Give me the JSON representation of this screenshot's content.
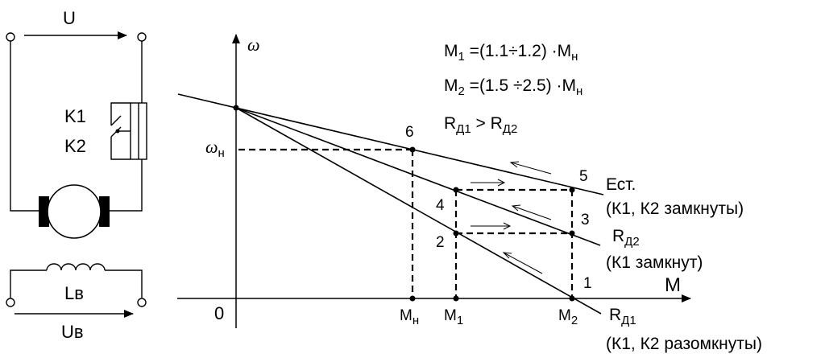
{
  "circuit": {
    "armature_voltage": "U",
    "contact_1": "K1",
    "contact_2": "K2",
    "field_winding_main": "L",
    "field_winding_sub": "в",
    "field_voltage_main": "U",
    "field_voltage_sub": "в"
  },
  "graph": {
    "y_axis_label": "ω",
    "x_axis_label": "M",
    "origin_label": "0",
    "omega_n_main": "ω",
    "omega_n_sub": "н",
    "x_ticks": [
      {
        "main": "M",
        "sub": "н"
      },
      {
        "main": "M",
        "sub": "1"
      },
      {
        "main": "M",
        "sub": "2"
      }
    ],
    "points": [
      "1",
      "2",
      "3",
      "4",
      "5",
      "6"
    ],
    "curves": [
      {
        "label": "Ест.",
        "note": "(К1, К2 замкнуты)"
      },
      {
        "label_main": "R",
        "label_sub": "Д2",
        "note": "(К1 замкнут)"
      },
      {
        "label_main": "R",
        "label_sub": "Д1",
        "note": "(К1, К2 разомкнуты)"
      }
    ]
  },
  "formulas": {
    "f1": {
      "m": "M",
      "sub": "1",
      "rhs": " =(1.1÷1.2) ·M",
      "tail": "н"
    },
    "f2": {
      "m": "M",
      "sub": "2",
      "rhs": "  =(1.5 ÷2.5) ·M",
      "tail": "н"
    },
    "f3": {
      "a": "R",
      "a_sub": "Д1",
      "mid": " > ",
      "b": "R",
      "b_sub": "Д2"
    }
  }
}
